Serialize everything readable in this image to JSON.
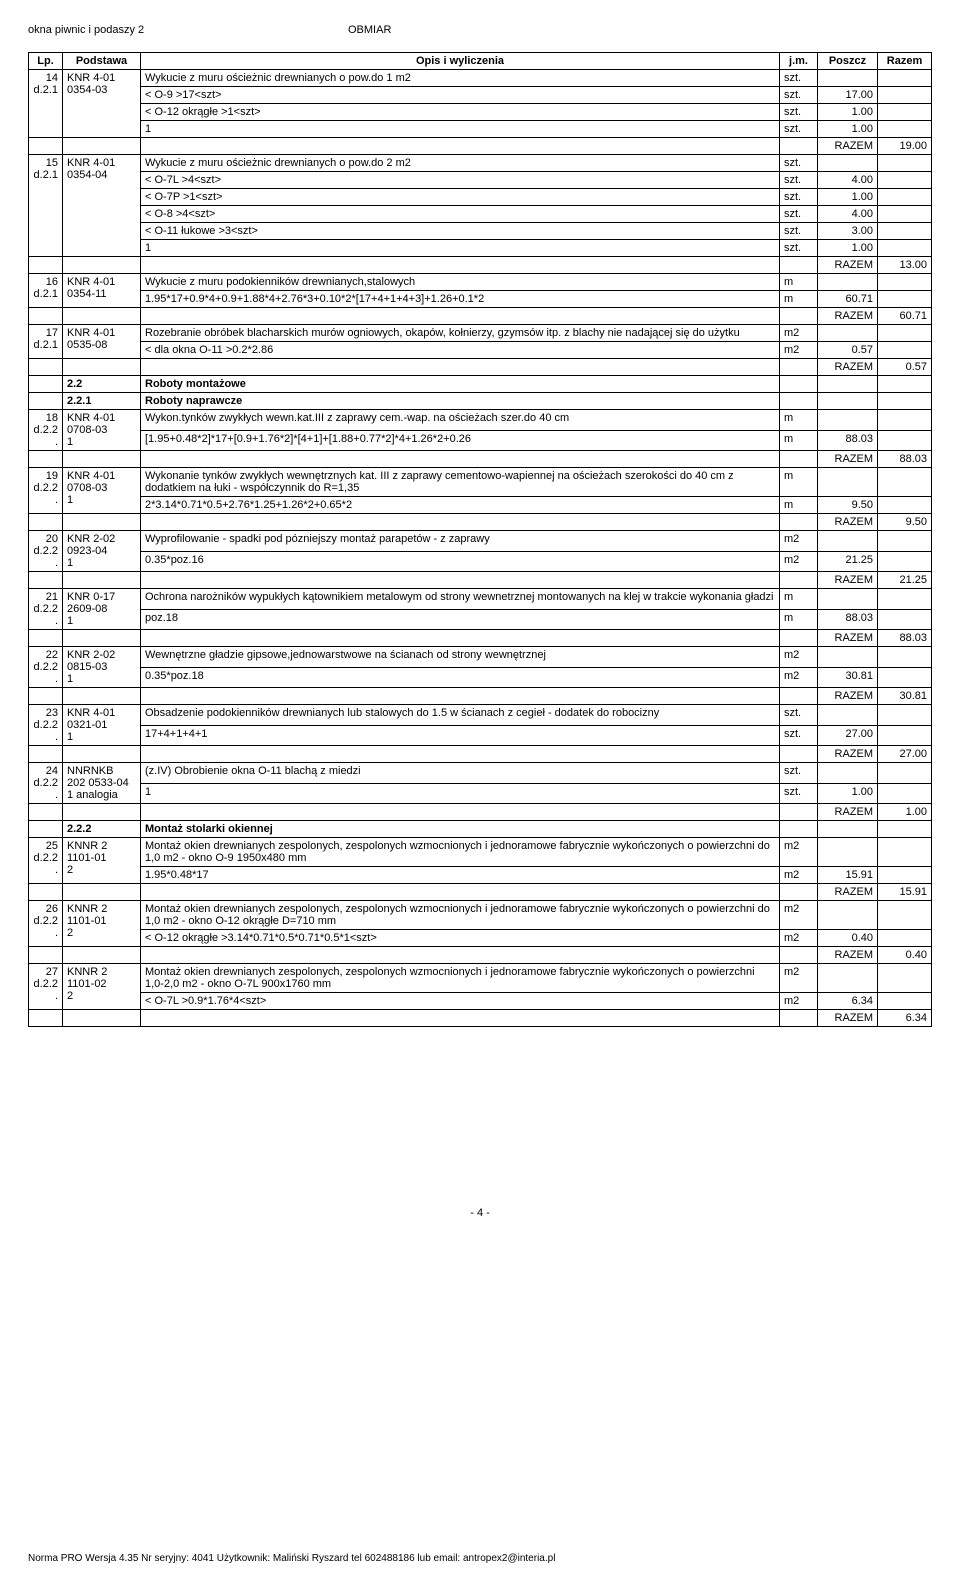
{
  "doc_header_left": "okna piwnic i podaszy 2",
  "doc_header_mid": "OBMIAR",
  "columns": {
    "lp": "Lp.",
    "podstawa": "Podstawa",
    "opis": "Opis i wyliczenia",
    "jm": "j.m.",
    "poszcz": "Poszcz",
    "razem": "Razem"
  },
  "razem_label": "RAZEM",
  "rows": [
    {
      "lp": "14",
      "pod": [
        "KNR 4-01",
        "0354-03"
      ],
      "d": "d.2.1",
      "opis": "Wykucie z muru ościeżnic drewnianych o pow.do 1 m2",
      "jm": "szt.",
      "sub": [
        {
          "t": "< O-9 >17<szt>",
          "jm": "szt.",
          "v": "17.00"
        },
        {
          "t": "< O-12 okrągłe >1<szt>",
          "jm": "szt.",
          "v": "1.00"
        },
        {
          "t": "1",
          "jm": "szt.",
          "v": "1.00"
        }
      ],
      "razem": "19.00"
    },
    {
      "lp": "15",
      "pod": [
        "KNR 4-01",
        "0354-04"
      ],
      "d": "d.2.1",
      "opis": "Wykucie z muru ościeżnic drewnianych o pow.do 2 m2",
      "jm": "szt.",
      "sub": [
        {
          "t": "< O-7L >4<szt>",
          "jm": "szt.",
          "v": "4.00"
        },
        {
          "t": "< O-7P >1<szt>",
          "jm": "szt.",
          "v": "1.00"
        },
        {
          "t": "< O-8 >4<szt>",
          "jm": "szt.",
          "v": "4.00"
        },
        {
          "t": "< O-11 łukowe >3<szt>",
          "jm": "szt.",
          "v": "3.00"
        },
        {
          "t": "1",
          "jm": "szt.",
          "v": "1.00"
        }
      ],
      "razem": "13.00"
    },
    {
      "lp": "16",
      "pod": [
        "KNR 4-01",
        "0354-11"
      ],
      "d": "d.2.1",
      "opis": "Wykucie z muru podokienników drewnianych,stalowych",
      "jm": "m",
      "sub": [
        {
          "t": "1.95*17+0.9*4+0.9+1.88*4+2.76*3+0.10*2*[17+4+1+4+3]+1.26+0.1*2",
          "jm": "m",
          "v": "60.71"
        }
      ],
      "razem": "60.71"
    },
    {
      "lp": "17",
      "pod": [
        "KNR 4-01",
        "0535-08"
      ],
      "d": "d.2.1",
      "opis": "Rozebranie obróbek blacharskich murów ogniowych, okapów, kołnierzy, gzymsów itp. z blachy nie nadającej się do użytku",
      "jm": "m2",
      "sub": [
        {
          "t": "< dla okna O-11 >0.2*2.86",
          "jm": "m2",
          "v": "0.57"
        }
      ],
      "razem": "0.57"
    },
    {
      "section": "2.2",
      "title": "Roboty montażowe",
      "bold": true
    },
    {
      "section": "2.2.1",
      "title": "Roboty naprawcze",
      "bold": true
    },
    {
      "lp": "18",
      "pod": [
        "KNR 4-01",
        "0708-03",
        "1"
      ],
      "d": "d.2.2.",
      "opis": "Wykon.tynków zwykłych wewn.kat.III z zaprawy cem.-wap. na ościeżach szer.do 40 cm",
      "jm": "m",
      "sub": [
        {
          "t": "[1.95+0.48*2]*17+[0.9+1.76*2]*[4+1]+[1.88+0.77*2]*4+1.26*2+0.26",
          "jm": "m",
          "v": "88.03"
        }
      ],
      "razem": "88.03"
    },
    {
      "lp": "19",
      "pod": [
        "KNR 4-01",
        "0708-03",
        "1"
      ],
      "d": "d.2.2.",
      "opis": "Wykonanie tynków zwykłych wewnętrznych kat. III z zaprawy cementowo-wapiennej na ościeżach szerokości do 40 cm z dodatkiem na łuki - współczynnik do R=1,35",
      "jm": "m",
      "sub": [
        {
          "t": "2*3.14*0.71*0.5+2.76*1.25+1.26*2+0.65*2",
          "jm": "m",
          "v": "9.50"
        }
      ],
      "razem": "9.50"
    },
    {
      "lp": "20",
      "pod": [
        "KNR 2-02",
        "0923-04",
        "1"
      ],
      "d": "d.2.2.",
      "opis": "Wyprofilowanie - spadki pod pózniejszy montaż parapetów - z zaprawy",
      "jm": "m2",
      "sub": [
        {
          "t": "0.35*poz.16",
          "jm": "m2",
          "v": "21.25"
        }
      ],
      "razem": "21.25"
    },
    {
      "lp": "21",
      "pod": [
        "KNR 0-17",
        "2609-08",
        "1"
      ],
      "d": "d.2.2.",
      "opis": "Ochrona narożników wypukłych kątownikiem metalowym od strony wewnetrznej montowanych na klej w trakcie wykonania gładzi",
      "jm": "m",
      "sub": [
        {
          "t": "poz.18",
          "jm": "m",
          "v": "88.03"
        }
      ],
      "razem": "88.03"
    },
    {
      "lp": "22",
      "pod": [
        "KNR 2-02",
        "0815-03",
        "1"
      ],
      "d": "d.2.2.",
      "opis": "Wewnętrzne gładzie gipsowe,jednowarstwowe na ścianach od strony wewnętrznej",
      "jm": "m2",
      "sub": [
        {
          "t": "0.35*poz.18",
          "jm": "m2",
          "v": "30.81"
        }
      ],
      "razem": "30.81"
    },
    {
      "lp": "23",
      "pod": [
        "KNR 4-01",
        "0321-01",
        "1"
      ],
      "d": "d.2.2.",
      "opis": "Obsadzenie podokienników drewnianych lub stalowych do 1.5 w ścianach z cegieł - dodatek do robocizny",
      "jm": "szt.",
      "sub": [
        {
          "t": "17+4+1+4+1",
          "jm": "szt.",
          "v": "27.00"
        }
      ],
      "razem": "27.00"
    },
    {
      "lp": "24",
      "pod": [
        "NNRNKB",
        "202 0533-04",
        "1 analogia"
      ],
      "d": "d.2.2.",
      "opis": "(z.IV) Obrobienie okna O-11 blachą z miedzi",
      "jm": "szt.",
      "sub": [
        {
          "t": "1",
          "jm": "szt.",
          "v": "1.00"
        }
      ],
      "razem": "1.00"
    },
    {
      "section": "2.2.2",
      "title": "Montaż stolarki okiennej",
      "bold": true
    },
    {
      "lp": "25",
      "pod": [
        "KNNR 2",
        "1101-01",
        "2"
      ],
      "d": "d.2.2.",
      "opis": "Montaż okien drewnianych zespolonych, zespolonych wzmocnionych i jednoramowe fabrycznie wykończonych o powierzchni do 1,0 m2 - okno  O-9 1950x480 mm",
      "jm": "m2",
      "sub": [
        {
          "t": "1.95*0.48*17",
          "jm": "m2",
          "v": "15.91"
        }
      ],
      "razem": "15.91"
    },
    {
      "lp": "26",
      "pod": [
        "KNNR 2",
        "1101-01",
        "2"
      ],
      "d": "d.2.2.",
      "opis": "Montaż okien drewnianych zespolonych, zespolonych wzmocnionych i jednoramowe fabrycznie wykończonych o powierzchni do 1,0 m2 - okno O-12 okrągłe D=710 mm",
      "jm": "m2",
      "sub": [
        {
          "t": "< O-12 okrągłe >3.14*0.71*0.5*0.71*0.5*1<szt>",
          "jm": "m2",
          "v": "0.40"
        }
      ],
      "razem": "0.40"
    },
    {
      "lp": "27",
      "pod": [
        "KNNR 2",
        "1101-02",
        "2"
      ],
      "d": "d.2.2.",
      "opis": "Montaż okien drewnianych zespolonych, zespolonych wzmocnionych i jednoramowe fabrycznie wykończonych o powierzchni 1,0-2,0 m2 - okno O-7L 900x1760 mm",
      "jm": "m2",
      "sub": [
        {
          "t": "< O-7L >0.9*1.76*4<szt>",
          "jm": "m2",
          "v": "6.34"
        }
      ],
      "razem": "6.34"
    }
  ],
  "page_num": "- 4 -",
  "footer_note": "Norma PRO Wersja 4.35 Nr seryjny: 4041 Użytkownik: Maliński Ryszard tel 602488186 lub email: antropex2@interia.pl"
}
